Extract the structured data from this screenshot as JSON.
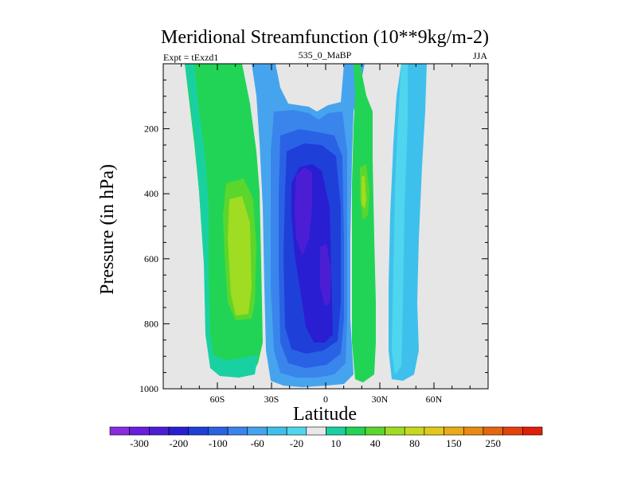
{
  "chart_data": {
    "type": "contour",
    "title": "Meridional Streamfunction (10**9kg/m-2)",
    "left_label": "Expt = tExzd1",
    "center_label": "535_0_MaBP",
    "right_label": "JJA",
    "xlabel": "Latitude",
    "ylabel": "Pressure (in hPa)",
    "xlim": [
      -90,
      90
    ],
    "ylim": [
      1000,
      0
    ],
    "x_ticks": [
      {
        "value": -60,
        "label": "60S"
      },
      {
        "value": -30,
        "label": "30S"
      },
      {
        "value": 0,
        "label": "0"
      },
      {
        "value": 30,
        "label": "30N"
      },
      {
        "value": 60,
        "label": "60N"
      }
    ],
    "y_ticks": [
      {
        "value": 200,
        "label": "200"
      },
      {
        "value": 400,
        "label": "400"
      },
      {
        "value": 600,
        "label": "600"
      },
      {
        "value": 800,
        "label": "800"
      },
      {
        "value": 1000,
        "label": "1000"
      }
    ],
    "missing_color": "#e6e6e6",
    "colorbar": {
      "colors": [
        "#8a2be2",
        "#6a1ee0",
        "#4b1ed6",
        "#2a1ed2",
        "#1f3fd9",
        "#2a62e6",
        "#3a85ec",
        "#46a4ee",
        "#3fc0ec",
        "#4fd6ee",
        "#e8e8e8",
        "#19d1a0",
        "#22d455",
        "#5ad62d",
        "#9fdc22",
        "#c9d81c",
        "#e3c81b",
        "#ebaa17",
        "#e98a12",
        "#e6660f",
        "#e3420c",
        "#e01e09"
      ],
      "labels": [
        "-300",
        "-200",
        "-100",
        "-60",
        "-20",
        "10",
        "40",
        "80",
        "150",
        "250"
      ]
    },
    "regions": [
      {
        "name": "sh-positive-cell",
        "level": "20 to 40",
        "color": "#22d455"
      },
      {
        "name": "sh-positive-core",
        "level": "40 to 60",
        "color": "#5ad62d"
      },
      {
        "name": "sh-edge",
        "level": "10 to 20",
        "color": "#19d1a0"
      },
      {
        "name": "tropical-negative-outer",
        "level": "-20 to -40",
        "color": "#46a4ee"
      },
      {
        "name": "tropical-negative-mid",
        "level": "-40 to -60",
        "color": "#3a85ec"
      },
      {
        "name": "tropical-negative-inner",
        "level": "-60 to -80",
        "color": "#2a62e6"
      },
      {
        "name": "tropical-negative-deep",
        "level": "-80 to -100",
        "color": "#1f3fd9"
      },
      {
        "name": "tropical-negative-core",
        "level": "-100 to -150",
        "color": "#2a1ed2"
      },
      {
        "name": "nh-positive-cell",
        "level": "20 to 40",
        "color": "#22d455"
      },
      {
        "name": "nh-negative-cell",
        "level": "-10 to -20",
        "color": "#3fc0ec"
      }
    ]
  }
}
